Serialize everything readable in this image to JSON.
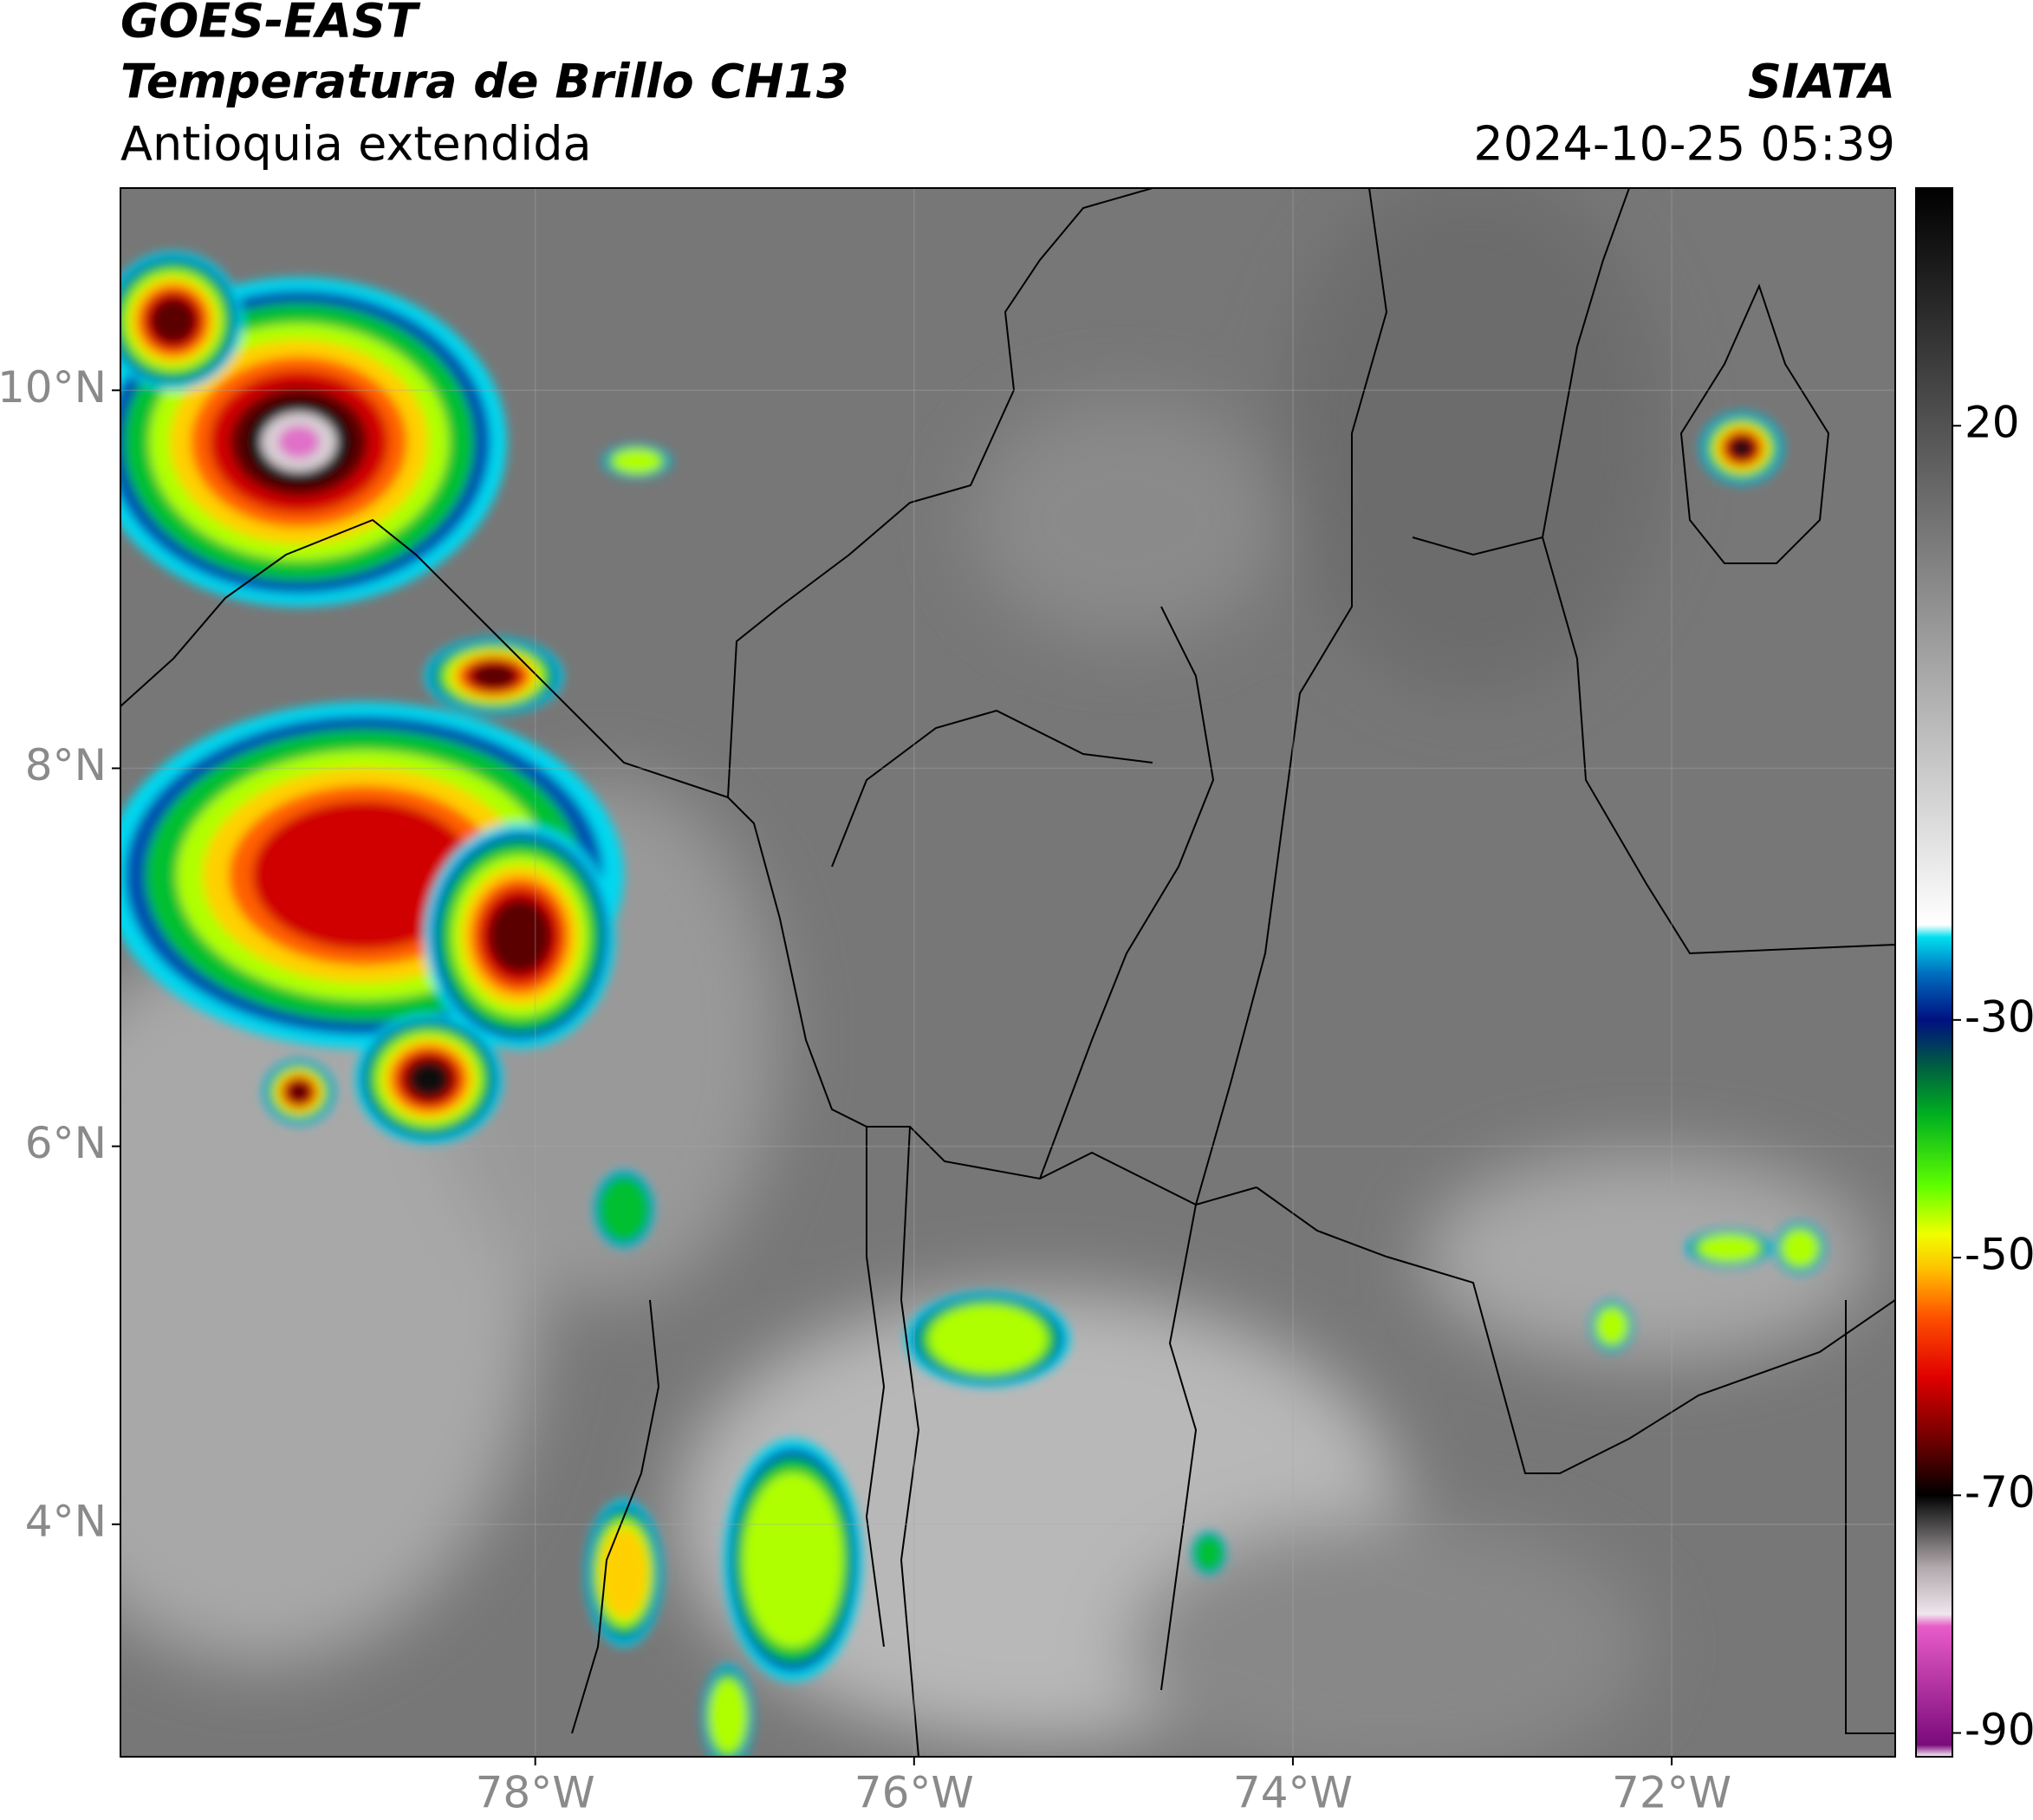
{
  "header": {
    "title": "GOES-EAST",
    "subtitle": "Temperatura de Brillo CH13",
    "region": "Antioquia extendida",
    "source": "SIATA",
    "timestamp": "2024-10-25 05:39"
  },
  "map": {
    "xlim": [
      -80.19,
      -70.82
    ],
    "ylim": [
      2.77,
      11.07
    ],
    "xticks": [
      {
        "value": -78,
        "label": "78°W"
      },
      {
        "value": -76,
        "label": "76°W"
      },
      {
        "value": -74,
        "label": "74°W"
      },
      {
        "value": -72,
        "label": "72°W"
      }
    ],
    "yticks": [
      {
        "value": 10,
        "label": "10°N"
      },
      {
        "value": 8,
        "label": "8°N"
      },
      {
        "value": 6,
        "label": "6°N"
      },
      {
        "value": 4,
        "label": "4°N"
      }
    ],
    "grid": true
  },
  "colorbar": {
    "lim": [
      -92,
      40
    ],
    "ticks": [
      20,
      -30,
      -50,
      -70,
      -90
    ],
    "stops": [
      {
        "value": -92,
        "color": "#ffffff"
      },
      {
        "value": -91,
        "color": "#7a0a7a"
      },
      {
        "value": -81,
        "color": "#e85cc8"
      },
      {
        "value": -80,
        "color": "#f0e6ee"
      },
      {
        "value": -76,
        "color": "#b0a8ac"
      },
      {
        "value": -71,
        "color": "#202020"
      },
      {
        "value": -70,
        "color": "#000000"
      },
      {
        "value": -66,
        "color": "#600000"
      },
      {
        "value": -60,
        "color": "#e00000"
      },
      {
        "value": -55,
        "color": "#ff5000"
      },
      {
        "value": -51,
        "color": "#ffc000"
      },
      {
        "value": -48,
        "color": "#f0ff00"
      },
      {
        "value": -44,
        "color": "#60ff00"
      },
      {
        "value": -38,
        "color": "#00b020"
      },
      {
        "value": -34,
        "color": "#006040"
      },
      {
        "value": -30,
        "color": "#001080"
      },
      {
        "value": -26,
        "color": "#0070c0"
      },
      {
        "value": -23,
        "color": "#00e0f0"
      },
      {
        "value": -22,
        "color": "#ffffff"
      },
      {
        "value": 40,
        "color": "#000000"
      }
    ]
  }
}
